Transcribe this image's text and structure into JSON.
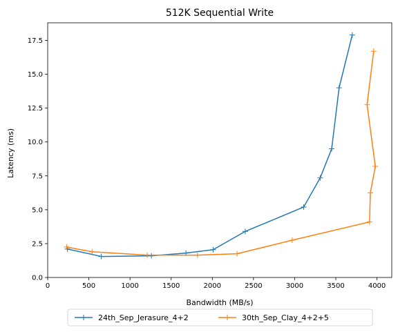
{
  "chart_data": {
    "type": "line",
    "title": "512K  Sequential Write",
    "xlabel": "Bandwidth (MB/s)",
    "ylabel": "Latency (ms)",
    "xlim": [
      0,
      4180
    ],
    "ylim": [
      0,
      18.8
    ],
    "xticks": [
      0,
      500,
      1000,
      1500,
      2000,
      2500,
      3000,
      3500,
      4000
    ],
    "yticks": [
      0.0,
      2.5,
      5.0,
      7.5,
      10.0,
      12.5,
      15.0,
      17.5
    ],
    "xtick_labels": [
      "0",
      "500",
      "1000",
      "1500",
      "2000",
      "2500",
      "3000",
      "3500",
      "4000"
    ],
    "ytick_labels": [
      "0.0",
      "2.5",
      "5.0",
      "7.5",
      "10.0",
      "12.5",
      "15.0",
      "17.5"
    ],
    "grid": false,
    "legend_placement": "bottom-center (below axes)",
    "series": [
      {
        "name": "24th_Sep_Jerasure_4+2",
        "color": "#1f77b4",
        "marker": "+",
        "points": [
          [
            240,
            2.1
          ],
          [
            650,
            1.55
          ],
          [
            1260,
            1.6
          ],
          [
            1680,
            1.8
          ],
          [
            2010,
            2.05
          ],
          [
            2400,
            3.4
          ],
          [
            3110,
            5.2
          ],
          [
            3310,
            7.35
          ],
          [
            3450,
            9.5
          ],
          [
            3540,
            14.0
          ],
          [
            3700,
            17.9
          ]
        ]
      },
      {
        "name": "30th_Sep_Clay_4+2+5",
        "color": "#ff7f0e",
        "marker": "+",
        "points": [
          [
            230,
            2.25
          ],
          [
            540,
            1.9
          ],
          [
            1210,
            1.65
          ],
          [
            1820,
            1.65
          ],
          [
            2300,
            1.75
          ],
          [
            2970,
            2.75
          ],
          [
            3910,
            4.1
          ],
          [
            3920,
            6.25
          ],
          [
            3980,
            8.2
          ],
          [
            3880,
            12.75
          ],
          [
            3960,
            16.7
          ]
        ]
      }
    ]
  }
}
